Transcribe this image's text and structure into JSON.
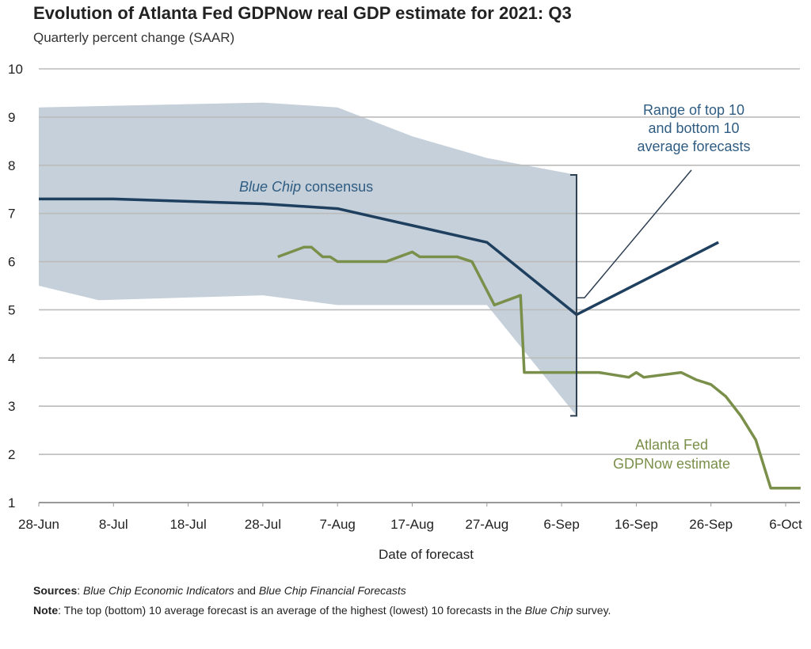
{
  "chart_data": {
    "type": "line",
    "title": "Evolution of Atlanta Fed GDPNow real GDP estimate for 2021: Q3",
    "subtitle": "Quarterly percent change (SAAR)",
    "xlabel": "Date of forecast",
    "ylabel": "",
    "ylim": [
      1,
      10
    ],
    "yticks": [
      1,
      2,
      3,
      4,
      5,
      6,
      7,
      8,
      9,
      10
    ],
    "x_unit": "days since 28-Jun",
    "xlim": [
      0,
      102
    ],
    "xticks": [
      {
        "day": 0,
        "label": "28-Jun"
      },
      {
        "day": 10,
        "label": "8-Jul"
      },
      {
        "day": 20,
        "label": "18-Jul"
      },
      {
        "day": 30,
        "label": "28-Jul"
      },
      {
        "day": 40,
        "label": "7-Aug"
      },
      {
        "day": 50,
        "label": "17-Aug"
      },
      {
        "day": 60,
        "label": "27-Aug"
      },
      {
        "day": 70,
        "label": "6-Sep"
      },
      {
        "day": 80,
        "label": "16-Sep"
      },
      {
        "day": 90,
        "label": "26-Sep"
      },
      {
        "day": 100,
        "label": "6-Oct"
      }
    ],
    "grid": true,
    "band": {
      "name": "Range of top 10 and bottom 10 average forecasts",
      "color": "#c5d0da",
      "upper": [
        [
          0,
          9.2
        ],
        [
          30,
          9.3
        ],
        [
          40,
          9.2
        ],
        [
          50,
          8.6
        ],
        [
          60,
          8.15
        ],
        [
          72,
          7.8
        ]
      ],
      "lower": [
        [
          0,
          5.5
        ],
        [
          8,
          5.2
        ],
        [
          30,
          5.3
        ],
        [
          40,
          5.1
        ],
        [
          60,
          5.1
        ],
        [
          72,
          2.8
        ]
      ]
    },
    "series": [
      {
        "name": "Blue Chip consensus",
        "color": "#1f3f5f",
        "points": [
          [
            0,
            7.3
          ],
          [
            10,
            7.3
          ],
          [
            30,
            7.2
          ],
          [
            40,
            7.1
          ],
          [
            50,
            6.75
          ],
          [
            60,
            6.4
          ],
          [
            72,
            4.9
          ],
          [
            91,
            6.4
          ]
        ]
      },
      {
        "name": "Atlanta Fed GDPNow estimate",
        "color": "#7a8f4a",
        "points": [
          [
            32,
            6.1
          ],
          [
            35.5,
            6.3
          ],
          [
            36.5,
            6.3
          ],
          [
            38,
            6.1
          ],
          [
            39,
            6.1
          ],
          [
            40,
            6.0
          ],
          [
            46.5,
            6.0
          ],
          [
            50,
            6.2
          ],
          [
            51,
            6.1
          ],
          [
            56,
            6.1
          ],
          [
            58,
            6.0
          ],
          [
            61,
            5.1
          ],
          [
            64.5,
            5.3
          ],
          [
            65,
            3.7
          ],
          [
            72,
            3.7
          ],
          [
            75,
            3.7
          ],
          [
            79,
            3.6
          ],
          [
            80,
            3.7
          ],
          [
            81,
            3.6
          ],
          [
            86,
            3.7
          ],
          [
            88,
            3.55
          ],
          [
            90,
            3.45
          ],
          [
            92,
            3.2
          ],
          [
            94,
            2.8
          ],
          [
            96,
            2.3
          ],
          [
            98,
            1.3
          ],
          [
            102,
            1.3
          ]
        ]
      }
    ],
    "annotations": [
      {
        "text": "Blue Chip consensus",
        "italic_part": "Blue Chip",
        "near": "upper-center"
      },
      {
        "text_lines": [
          "Range of top 10",
          "and bottom 10",
          "average forecasts"
        ],
        "near": "top-right"
      },
      {
        "text_lines": [
          "Atlanta Fed",
          "GDPNow estimate"
        ],
        "near": "bottom-right"
      }
    ],
    "bracket": {
      "day": 72,
      "from": 2.8,
      "to": 7.8
    }
  },
  "footer": {
    "sources_label": "Sources",
    "sources_text_a": "Blue Chip Economic Indicators",
    "sources_and": " and ",
    "sources_text_b": "Blue Chip Financial Forecasts",
    "note_label": "Note",
    "note_text": ": The top (bottom) 10 average forecast is an average of the highest (lowest) 10 forecasts in the ",
    "note_italic": "Blue Chip",
    "note_end": " survey."
  }
}
